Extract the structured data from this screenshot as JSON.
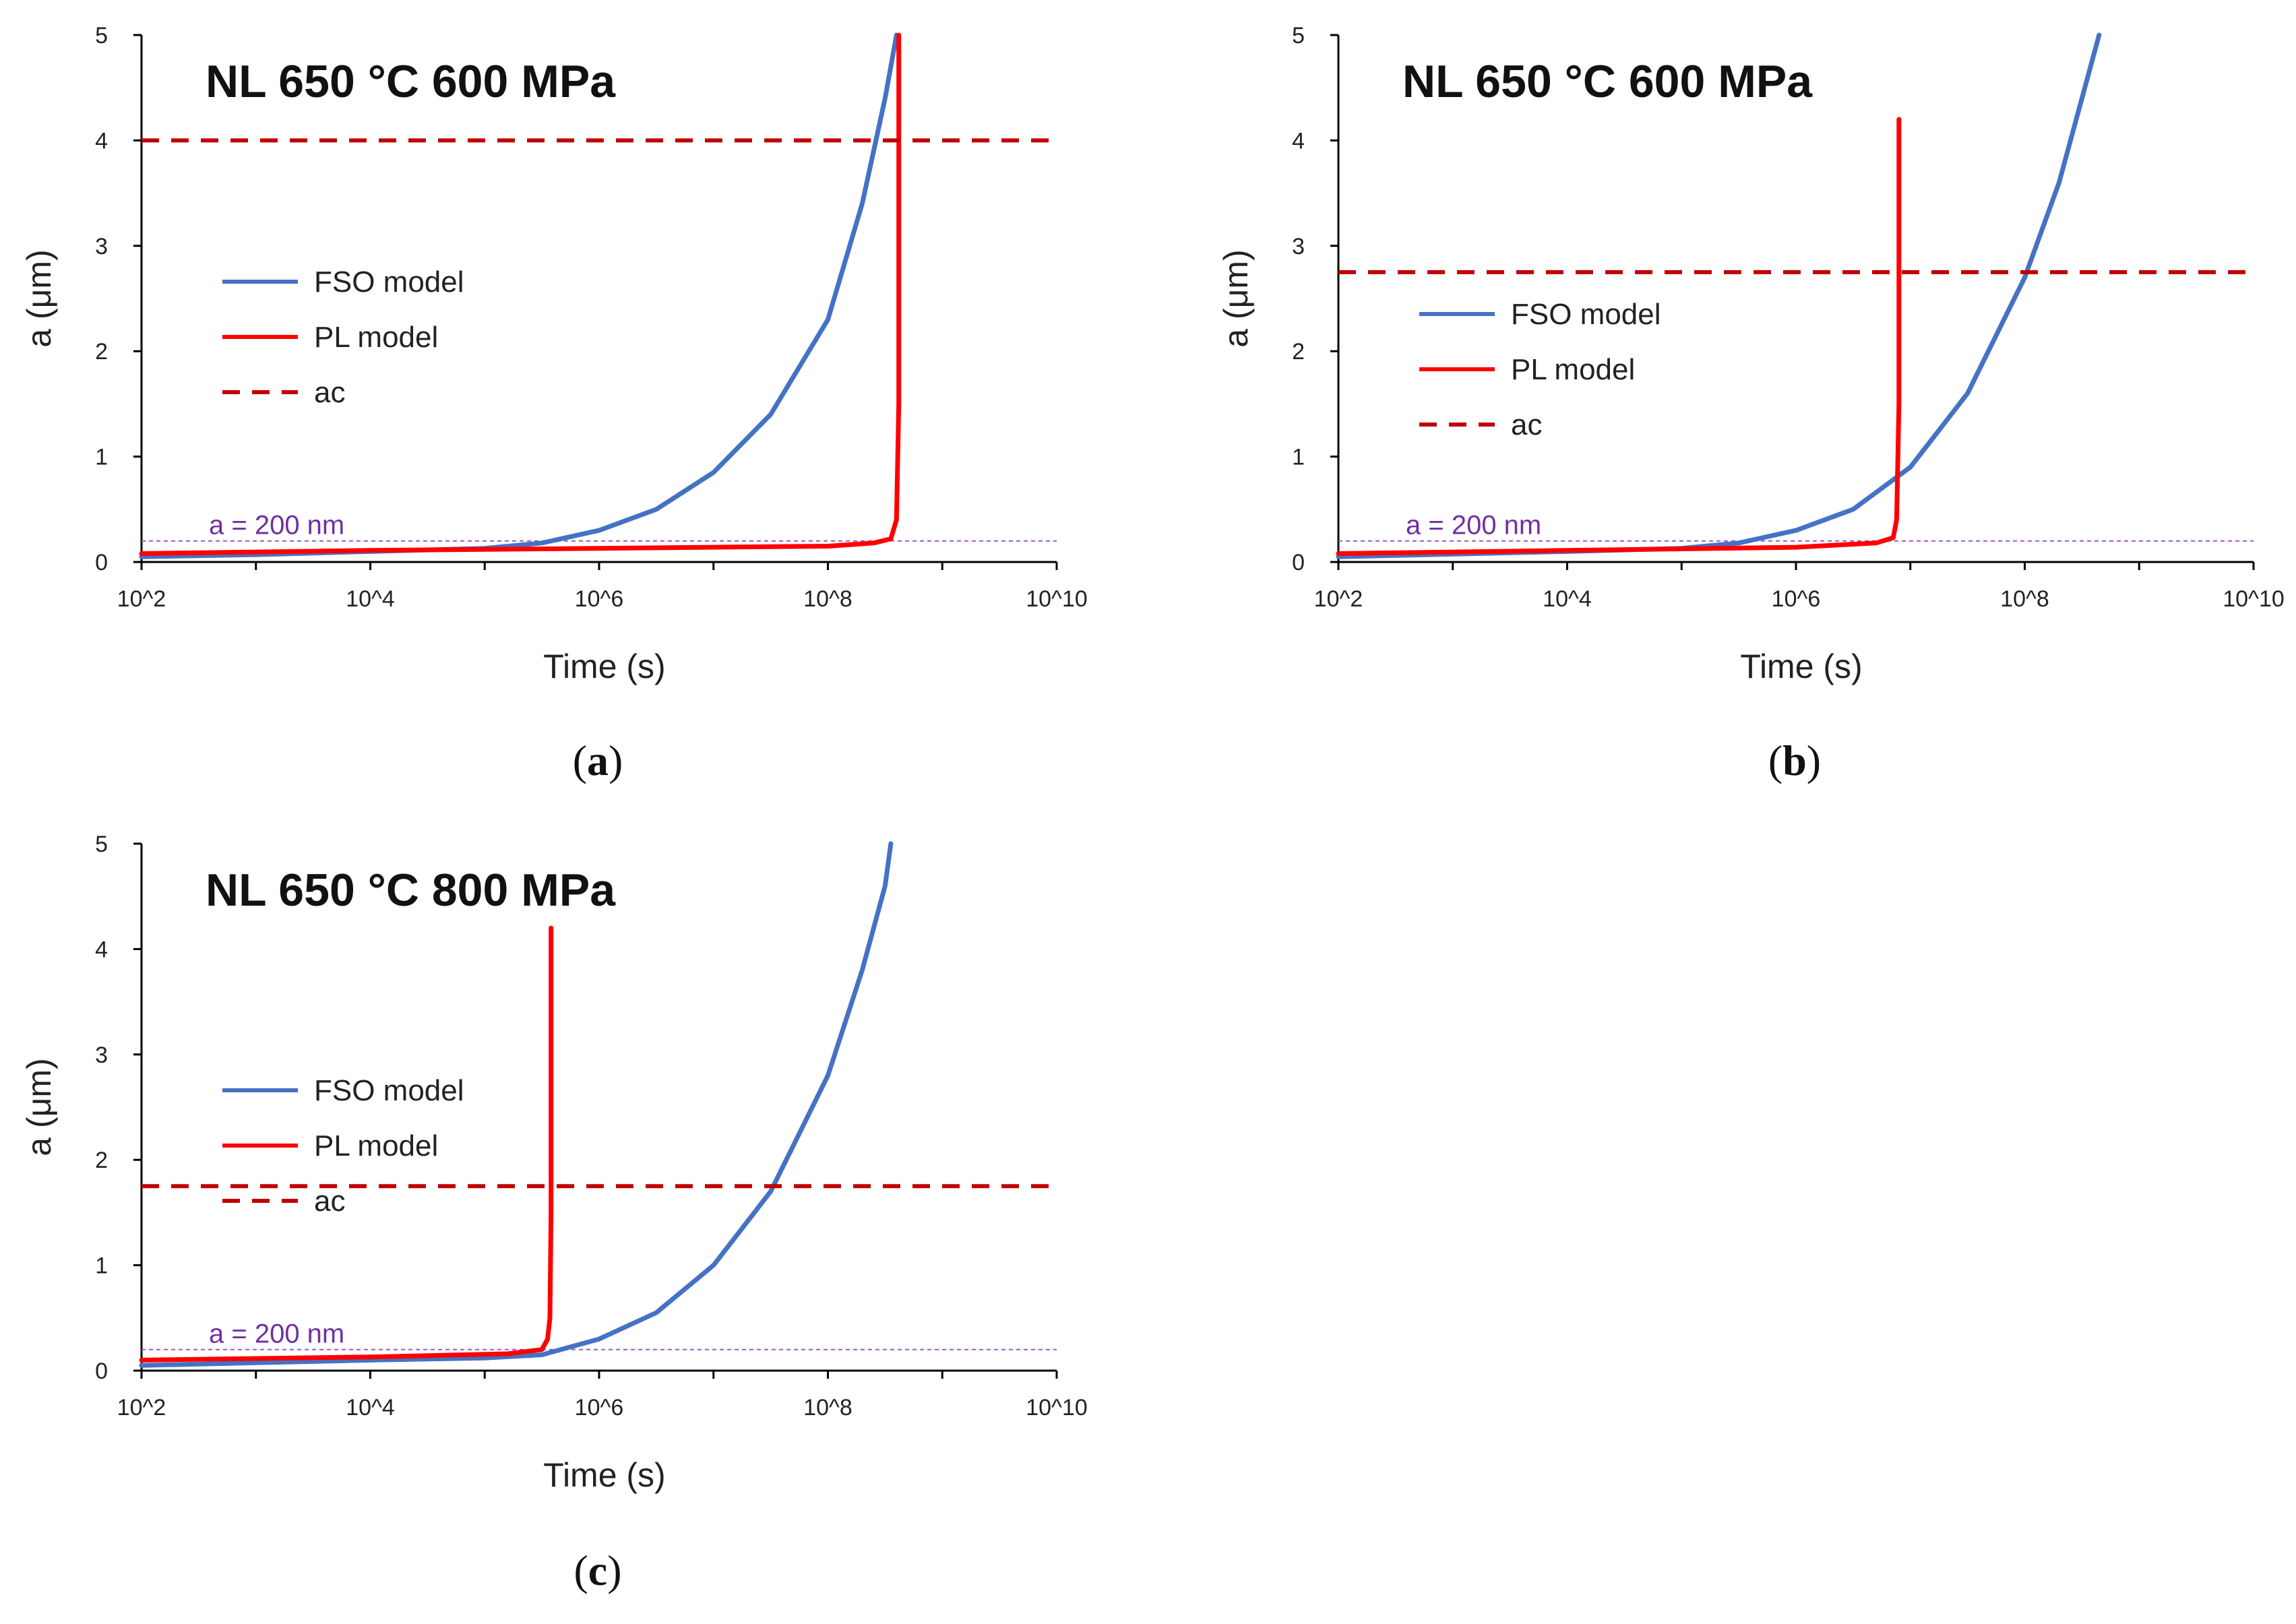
{
  "chart_data": [
    {
      "type": "line",
      "panel": "a",
      "caption": {
        "open": "(",
        "letter": "a",
        "close": ")"
      },
      "title": "NL 650 °C 600 MPa",
      "xlabel": "Time (s)",
      "ylabel": "a (μm)",
      "xscale": "log10",
      "xlim": [
        2,
        10
      ],
      "ylim": [
        0,
        5
      ],
      "x_ticks": [
        {
          "v": 2,
          "label": "10^2"
        },
        {
          "v": 4,
          "label": "10^4"
        },
        {
          "v": 6,
          "label": "10^6"
        },
        {
          "v": 8,
          "label": "10^8"
        },
        {
          "v": 10,
          "label": "10^10"
        }
      ],
      "y_ticks": [
        {
          "v": 0,
          "label": "0"
        },
        {
          "v": 1,
          "label": "1"
        },
        {
          "v": 2,
          "label": "2"
        },
        {
          "v": 3,
          "label": "3"
        },
        {
          "v": 4,
          "label": "4"
        },
        {
          "v": 5,
          "label": "5"
        }
      ],
      "legend": [
        "FSO model",
        "PL model",
        "ac"
      ],
      "reference_line": {
        "value": 0.2,
        "label": "a = 200 nm"
      },
      "series": [
        {
          "name": "FSO model",
          "color": "#4472c4",
          "log10_x": [
            2,
            3,
            4,
            5,
            5.5,
            6,
            6.5,
            7,
            7.5,
            8,
            8.3,
            8.5,
            8.6
          ],
          "y": [
            0.05,
            0.07,
            0.1,
            0.13,
            0.18,
            0.3,
            0.5,
            0.85,
            1.4,
            2.3,
            3.4,
            4.4,
            5.0
          ]
        },
        {
          "name": "PL model",
          "color": "#ff0000",
          "log10_x": [
            2,
            4,
            6,
            8,
            8.4,
            8.55,
            8.6,
            8.62,
            8.62
          ],
          "y": [
            0.08,
            0.11,
            0.13,
            0.15,
            0.18,
            0.22,
            0.4,
            1.5,
            5.0
          ]
        },
        {
          "name": "ac",
          "color": "#c00000",
          "dashed": true,
          "y_const": 4.0
        }
      ]
    },
    {
      "type": "line",
      "panel": "b",
      "caption": {
        "open": "(",
        "letter": "b",
        "close": ")"
      },
      "title": "NL 650 °C 600 MPa",
      "xlabel": "Time (s)",
      "ylabel": "a (μm)",
      "xscale": "log10",
      "xlim": [
        2,
        10
      ],
      "ylim": [
        0,
        5
      ],
      "x_ticks": [
        {
          "v": 2,
          "label": "10^2"
        },
        {
          "v": 4,
          "label": "10^4"
        },
        {
          "v": 6,
          "label": "10^6"
        },
        {
          "v": 8,
          "label": "10^8"
        },
        {
          "v": 10,
          "label": "10^10"
        }
      ],
      "y_ticks": [
        {
          "v": 0,
          "label": "0"
        },
        {
          "v": 1,
          "label": "1"
        },
        {
          "v": 2,
          "label": "2"
        },
        {
          "v": 3,
          "label": "3"
        },
        {
          "v": 4,
          "label": "4"
        },
        {
          "v": 5,
          "label": "5"
        }
      ],
      "legend": [
        "FSO model",
        "PL model",
        "ac"
      ],
      "reference_line": {
        "value": 0.2,
        "label": "a = 200 nm"
      },
      "series": [
        {
          "name": "FSO model",
          "color": "#4472c4",
          "log10_x": [
            2,
            4,
            5,
            5.5,
            6,
            6.5,
            7,
            7.5,
            8,
            8.3,
            8.5,
            8.65
          ],
          "y": [
            0.05,
            0.1,
            0.13,
            0.18,
            0.3,
            0.5,
            0.9,
            1.6,
            2.7,
            3.6,
            4.4,
            5.0
          ]
        },
        {
          "name": "PL model",
          "color": "#ff0000",
          "log10_x": [
            2,
            4,
            6,
            6.7,
            6.85,
            6.88,
            6.9,
            6.9
          ],
          "y": [
            0.08,
            0.11,
            0.14,
            0.18,
            0.23,
            0.4,
            1.5,
            4.2
          ]
        },
        {
          "name": "ac",
          "color": "#c00000",
          "dashed": true,
          "y_const": 2.75
        }
      ]
    },
    {
      "type": "line",
      "panel": "c",
      "caption": {
        "open": "(",
        "letter": "c",
        "close": ")"
      },
      "title": "NL 650 °C 800 MPa",
      "xlabel": "Time (s)",
      "ylabel": "a (μm)",
      "xscale": "log10",
      "xlim": [
        2,
        10
      ],
      "ylim": [
        0,
        5
      ],
      "x_ticks": [
        {
          "v": 2,
          "label": "10^2"
        },
        {
          "v": 4,
          "label": "10^4"
        },
        {
          "v": 6,
          "label": "10^6"
        },
        {
          "v": 8,
          "label": "10^8"
        },
        {
          "v": 10,
          "label": "10^10"
        }
      ],
      "y_ticks": [
        {
          "v": 0,
          "label": "0"
        },
        {
          "v": 1,
          "label": "1"
        },
        {
          "v": 2,
          "label": "2"
        },
        {
          "v": 3,
          "label": "3"
        },
        {
          "v": 4,
          "label": "4"
        },
        {
          "v": 5,
          "label": "5"
        }
      ],
      "legend": [
        "FSO model",
        "PL model",
        "ac"
      ],
      "reference_line": {
        "value": 0.2,
        "label": "a = 200 nm"
      },
      "series": [
        {
          "name": "FSO model",
          "color": "#4472c4",
          "log10_x": [
            2,
            4,
            5,
            5.5,
            6,
            6.5,
            7,
            7.5,
            8,
            8.3,
            8.5,
            8.55
          ],
          "y": [
            0.05,
            0.1,
            0.12,
            0.15,
            0.3,
            0.55,
            1.0,
            1.7,
            2.8,
            3.8,
            4.6,
            5.0
          ]
        },
        {
          "name": "PL model",
          "color": "#ff0000",
          "log10_x": [
            2,
            4,
            5.2,
            5.5,
            5.55,
            5.57,
            5.58,
            5.58
          ],
          "y": [
            0.1,
            0.13,
            0.16,
            0.2,
            0.3,
            0.5,
            1.5,
            4.2
          ]
        },
        {
          "name": "ac",
          "color": "#c00000",
          "dashed": true,
          "y_const": 1.75
        }
      ]
    }
  ]
}
